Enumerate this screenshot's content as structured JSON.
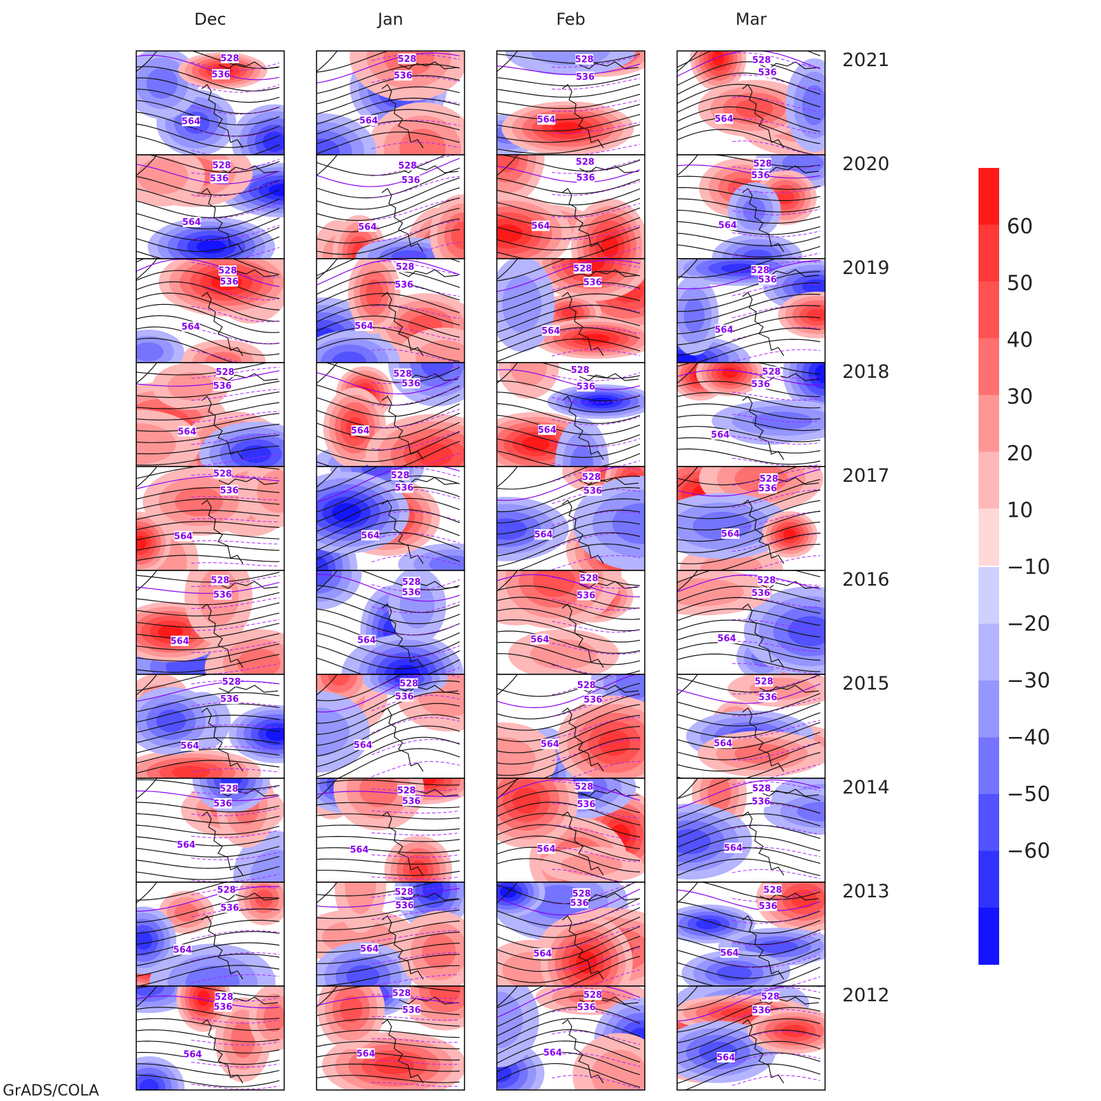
{
  "columns": [
    "Dec",
    "Jan",
    "Feb",
    "Mar"
  ],
  "rows": [
    "2021",
    "2020",
    "2019",
    "2018",
    "2017",
    "2016",
    "2015",
    "2014",
    "2013",
    "2012"
  ],
  "contour_labels": [
    "528",
    "536",
    "564"
  ],
  "colorbar": {
    "positive_ticks": [
      "60",
      "50",
      "40",
      "30",
      "20",
      "10"
    ],
    "negative_ticks": [
      "-10",
      "-20",
      "-30",
      "-40",
      "-50",
      "-60"
    ],
    "positive_colors": [
      "#ff1a1a",
      "#ff3838",
      "#ff5252",
      "#ff7070",
      "#ff9696",
      "#ffb8b8",
      "#ffd8d8"
    ],
    "negative_colors": [
      "#d0d0ff",
      "#b4b4ff",
      "#9696ff",
      "#7474ff",
      "#5252ff",
      "#3232ff",
      "#1414ff"
    ]
  },
  "contour_colors": {
    "labeled": "#8800ee",
    "solid": "#111111",
    "dashed": "#aa22ff"
  },
  "credit": "GrADS/COLA"
}
